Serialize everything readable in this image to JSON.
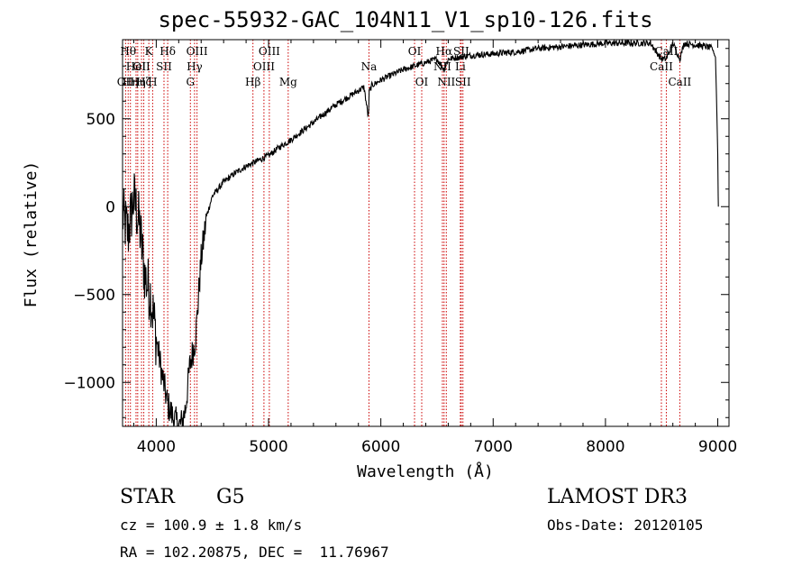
{
  "title": "spec-55932-GAC_104N11_V1_sp10-126.fits",
  "info": {
    "object_class": "STAR",
    "subclass": "G5",
    "survey": "LAMOST DR3",
    "cz": "cz = 100.9 ± 1.8 km/s",
    "obs_date": "Obs-Date: 20120105",
    "ra_dec": "RA = 102.20875, DEC =  11.76967"
  },
  "chart_data": {
    "type": "line",
    "title": "spec-55932-GAC_104N11_V1_sp10-126.fits",
    "xlabel": "Wavelength (Å)",
    "ylabel": "Flux (relative)",
    "xlim": [
      3700,
      9100
    ],
    "ylim": [
      -1250,
      950
    ],
    "xticks": [
      4000,
      5000,
      6000,
      7000,
      8000,
      9000
    ],
    "yticks": [
      -1000,
      -500,
      0,
      500
    ],
    "ytick_labels": [
      "−1000",
      "−500",
      "0",
      "500"
    ],
    "grid": false,
    "line_color": "#000000",
    "marker_color": "#cc0000",
    "spectrum": {
      "x": [
        3700,
        3750,
        3800,
        3850,
        3900,
        3950,
        4000,
        4050,
        4100,
        4150,
        4200,
        4230,
        4260,
        4300,
        4350,
        4400,
        4450,
        4500,
        4600,
        4700,
        4800,
        4900,
        5000,
        5100,
        5200,
        5300,
        5400,
        5500,
        5600,
        5700,
        5800,
        5850,
        5890,
        5895,
        5920,
        6000,
        6100,
        6200,
        6300,
        6400,
        6500,
        6563,
        6600,
        6700,
        6800,
        7000,
        7200,
        7400,
        7600,
        7800,
        8000,
        8200,
        8400,
        8498,
        8542,
        8600,
        8662,
        8700,
        8800,
        8900,
        8950,
        8980,
        8990,
        9000,
        9005
      ],
      "y": [
        -50,
        -150,
        50,
        -100,
        -400,
        -500,
        -750,
        -950,
        -1120,
        -1200,
        -1250,
        -1230,
        -1150,
        -900,
        -750,
        -300,
        -50,
        60,
        140,
        190,
        230,
        260,
        290,
        340,
        380,
        430,
        480,
        530,
        580,
        620,
        660,
        680,
        500,
        650,
        690,
        720,
        750,
        780,
        800,
        820,
        840,
        780,
        840,
        850,
        860,
        870,
        880,
        900,
        910,
        920,
        930,
        930,
        930,
        840,
        840,
        930,
        840,
        930,
        920,
        910,
        900,
        850,
        600,
        300,
        0
      ]
    },
    "lines": [
      {
        "wavelength": 3727,
        "label": "OII",
        "row": 2
      },
      {
        "wavelength": 3750,
        "label": "Hθ",
        "row": 0
      },
      {
        "wavelength": 3770,
        "label": "Hη",
        "row": 2
      },
      {
        "wavelength": 3820,
        "label": "HeI",
        "row": 1
      },
      {
        "wavelength": 3835,
        "label": "Hη",
        "row": 2
      },
      {
        "wavelength": 3869,
        "label": "OII",
        "row": 1
      },
      {
        "wavelength": 3889,
        "label": "Hζ",
        "row": 2
      },
      {
        "wavelength": 3934,
        "label": "K",
        "row": 0
      },
      {
        "wavelength": 3968,
        "label": "H",
        "row": 2
      },
      {
        "wavelength": 4069,
        "label": "SII",
        "row": 1
      },
      {
        "wavelength": 4102,
        "label": "Hδ",
        "row": 0
      },
      {
        "wavelength": 4304,
        "label": "G",
        "row": 2
      },
      {
        "wavelength": 4341,
        "label": "Hγ",
        "row": 1
      },
      {
        "wavelength": 4363,
        "label": "OIII",
        "row": 0
      },
      {
        "wavelength": 4861,
        "label": "Hβ",
        "row": 2
      },
      {
        "wavelength": 4959,
        "label": "OIII",
        "row": 1
      },
      {
        "wavelength": 5007,
        "label": "OIII",
        "row": 0
      },
      {
        "wavelength": 5175,
        "label": "Mg",
        "row": 2
      },
      {
        "wavelength": 5894,
        "label": "Na",
        "row": 1
      },
      {
        "wavelength": 6300,
        "label": "OI",
        "row": 0
      },
      {
        "wavelength": 6364,
        "label": "OI",
        "row": 2
      },
      {
        "wavelength": 6548,
        "label": "NII",
        "row": 1
      },
      {
        "wavelength": 6563,
        "label": "Hα",
        "row": 0
      },
      {
        "wavelength": 6583,
        "label": "NII",
        "row": 2
      },
      {
        "wavelength": 6708,
        "label": "Li",
        "row": 1
      },
      {
        "wavelength": 6716,
        "label": "SII",
        "row": 0
      },
      {
        "wavelength": 6731,
        "label": "SII",
        "row": 2
      },
      {
        "wavelength": 8498,
        "label": "CaII",
        "row": 1
      },
      {
        "wavelength": 8542,
        "label": "CaII",
        "row": 0
      },
      {
        "wavelength": 8662,
        "label": "CaII",
        "row": 2
      }
    ]
  }
}
